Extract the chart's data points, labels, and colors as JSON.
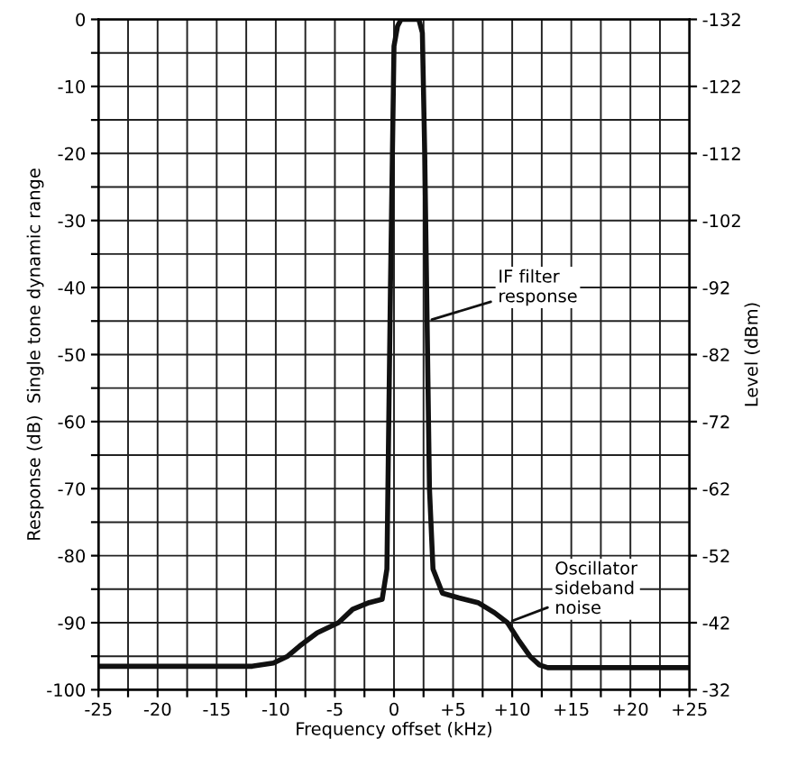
{
  "chart_data": {
    "type": "line",
    "xlabel": "Frequency offset (kHz)",
    "ylabel": "Response (dB)  Single tone dynamic range",
    "y2label": "Level (dBm)",
    "series": [
      {
        "color": "#111111",
        "x": [
          -25,
          -20,
          -15,
          -12,
          -10.2,
          -9,
          -8,
          -6.5,
          -4.7,
          -3.5,
          -2.1,
          -1,
          -0.6,
          -0.3,
          0,
          0.3,
          0.6,
          2.1,
          2.4,
          2.6,
          2.8,
          3.0,
          3.3,
          4.1,
          5.5,
          7.1,
          8.5,
          9.6,
          10.5,
          11.5,
          12.3,
          13,
          15,
          20,
          25
        ],
        "values": [
          -96.5,
          -96.5,
          -96.5,
          -96.5,
          -96,
          -95,
          -93.5,
          -91.5,
          -90,
          -88,
          -87,
          -86.5,
          -82,
          -40,
          -4,
          -1,
          0,
          0,
          -2,
          -20,
          -45,
          -70,
          -82,
          -85.6,
          -86.3,
          -87,
          -88.5,
          -90,
          -92.5,
          -95,
          -96.3,
          -96.7,
          -96.7,
          -96.7,
          -96.7
        ]
      }
    ],
    "annotations": [
      {
        "text": "IF filter\nresponse",
        "x": 2.8,
        "y": -45
      },
      {
        "text": "Oscillator\nsideband\nnoise",
        "x": 9.6,
        "y": -90
      }
    ],
    "xlim": [
      -25,
      25
    ],
    "xticks": [
      -25,
      {
        "value": -22.5,
        "label": null
      },
      -20,
      {
        "value": -17.5,
        "label": null
      },
      -15,
      {
        "value": -12.5,
        "label": null
      },
      -10,
      {
        "value": -7.5,
        "label": null
      },
      -5,
      {
        "value": -2.5,
        "label": null
      },
      0,
      {
        "value": 2.5,
        "label": null
      },
      {
        "value": 5,
        "label": "+5"
      },
      {
        "value": 7.5,
        "label": null
      },
      {
        "value": 10,
        "label": "+10"
      },
      {
        "value": 12.5,
        "label": null
      },
      {
        "value": 15,
        "label": "+15"
      },
      {
        "value": 17.5,
        "label": null
      },
      {
        "value": 20,
        "label": "+20"
      },
      {
        "value": 22.5,
        "label": null
      },
      {
        "value": 25,
        "label": "+25"
      }
    ],
    "ylim": [
      -100,
      0
    ],
    "yticks": [
      -100,
      {
        "value": -95,
        "label": null
      },
      -90,
      {
        "value": -85,
        "label": null
      },
      -80,
      {
        "value": -75,
        "label": null
      },
      -70,
      {
        "value": -65,
        "label": null
      },
      -60,
      {
        "value": -55,
        "label": null
      },
      -50,
      {
        "value": -45,
        "label": null
      },
      -40,
      {
        "value": -35,
        "label": null
      },
      -30,
      {
        "value": -25,
        "label": null
      },
      -20,
      {
        "value": -15,
        "label": null
      },
      -10,
      {
        "value": -5,
        "label": null
      },
      0
    ],
    "y2lim": [
      -32,
      -132
    ],
    "y2ticks": [
      -32,
      -42,
      -52,
      -62,
      -72,
      -82,
      -92,
      -102,
      -112,
      -122,
      -132
    ],
    "grid": true,
    "line_style": "solid",
    "marker": "none"
  }
}
